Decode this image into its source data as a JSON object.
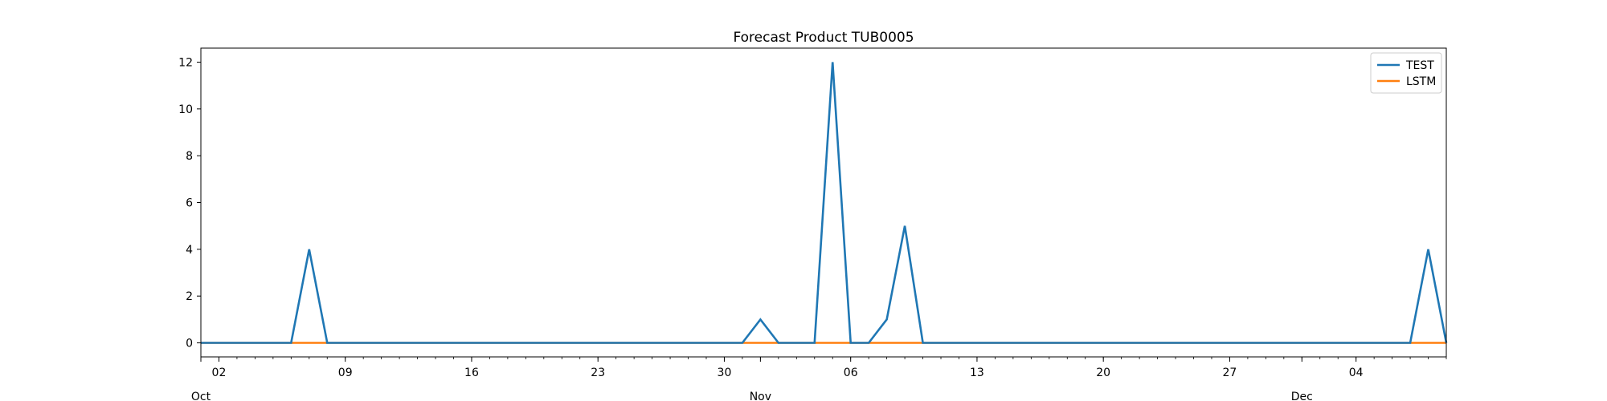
{
  "chart_data": {
    "type": "line",
    "title": "Forecast Product TUB0005",
    "xlabel": "",
    "ylabel": "",
    "x_range": [
      "2023-10-01",
      "2023-12-09"
    ],
    "ylim": [
      -0.6,
      12.6
    ],
    "y_ticks": [
      "0",
      "2",
      "4",
      "6",
      "8",
      "10",
      "12"
    ],
    "x_major_ticks": [
      {
        "date": "2023-10-02",
        "label": "02"
      },
      {
        "date": "2023-10-09",
        "label": "09"
      },
      {
        "date": "2023-10-16",
        "label": "16"
      },
      {
        "date": "2023-10-23",
        "label": "23"
      },
      {
        "date": "2023-10-30",
        "label": "30"
      },
      {
        "date": "2023-11-06",
        "label": "06"
      },
      {
        "date": "2023-11-13",
        "label": "13"
      },
      {
        "date": "2023-11-20",
        "label": "20"
      },
      {
        "date": "2023-11-27",
        "label": "27"
      },
      {
        "date": "2023-12-04",
        "label": "04"
      }
    ],
    "x_month_labels": [
      {
        "date": "2023-10-01",
        "label": "Oct"
      },
      {
        "date": "2023-11-01",
        "label": "Nov"
      },
      {
        "date": "2023-12-01",
        "label": "Dec"
      }
    ],
    "legend_position": "top-right",
    "grid": false,
    "series": [
      {
        "name": "TEST",
        "color": "#1f77b4",
        "points": [
          {
            "x": "2023-10-01",
            "y": 0
          },
          {
            "x": "2023-10-06",
            "y": 0
          },
          {
            "x": "2023-10-07",
            "y": 4
          },
          {
            "x": "2023-10-08",
            "y": 0
          },
          {
            "x": "2023-10-31",
            "y": 0
          },
          {
            "x": "2023-11-01",
            "y": 1
          },
          {
            "x": "2023-11-02",
            "y": 0
          },
          {
            "x": "2023-11-04",
            "y": 0
          },
          {
            "x": "2023-11-05",
            "y": 12
          },
          {
            "x": "2023-11-06",
            "y": 0
          },
          {
            "x": "2023-11-07",
            "y": 0
          },
          {
            "x": "2023-11-08",
            "y": 1
          },
          {
            "x": "2023-11-09",
            "y": 5
          },
          {
            "x": "2023-11-10",
            "y": 0
          },
          {
            "x": "2023-12-07",
            "y": 0
          },
          {
            "x": "2023-12-08",
            "y": 4
          },
          {
            "x": "2023-12-09",
            "y": 0
          }
        ]
      },
      {
        "name": "LSTM",
        "color": "#ff7f0e",
        "points": [
          {
            "x": "2023-10-01",
            "y": 0
          },
          {
            "x": "2023-12-09",
            "y": 0
          }
        ]
      }
    ]
  }
}
